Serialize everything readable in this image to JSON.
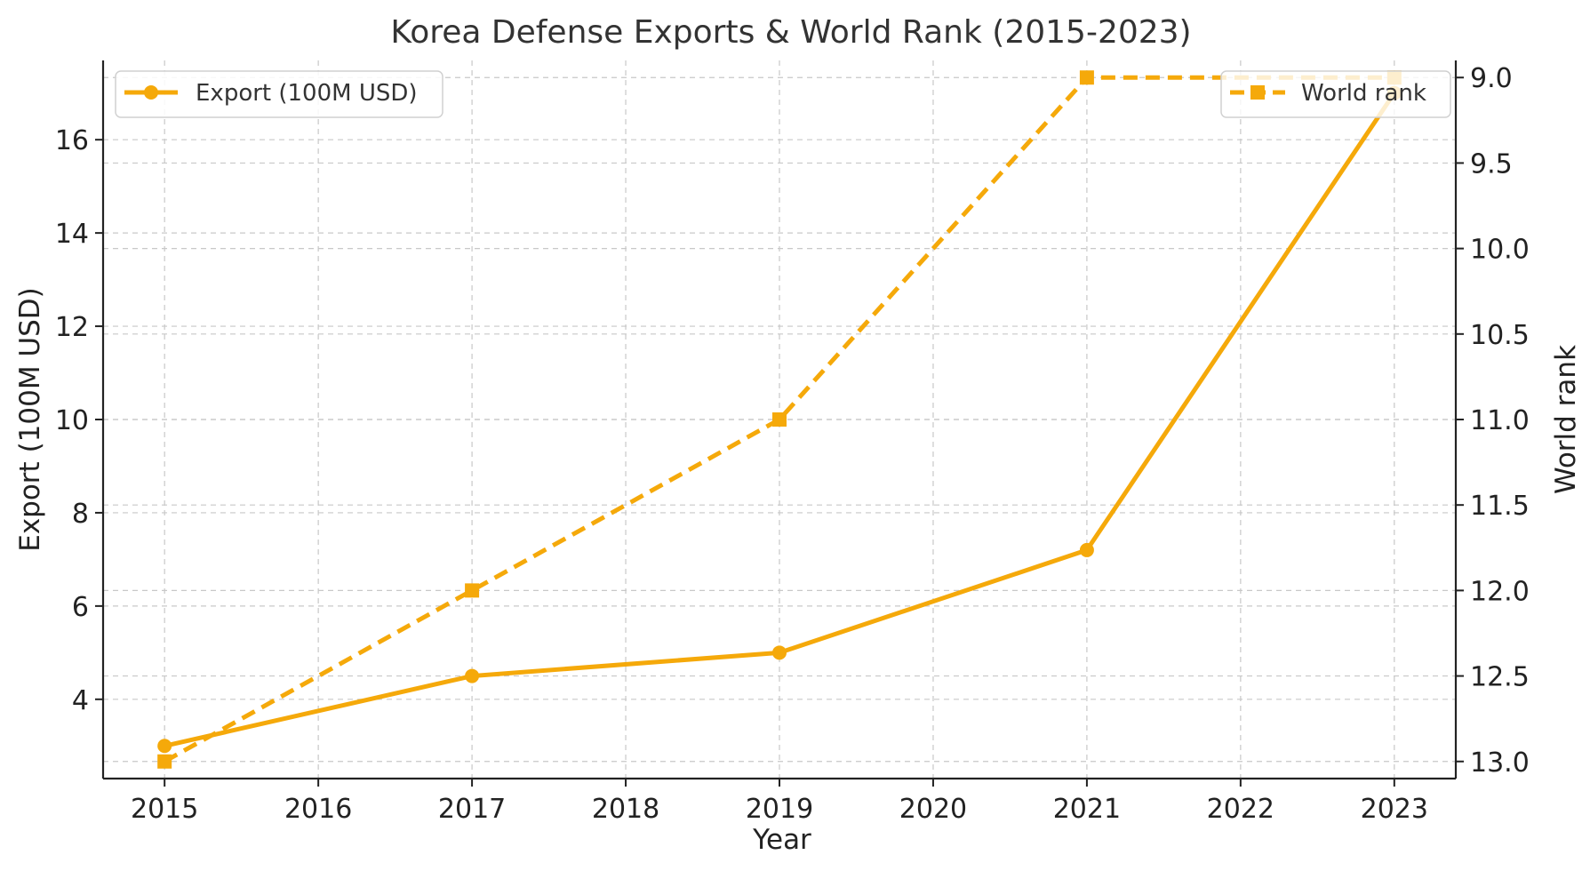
{
  "chart_data": {
    "type": "line",
    "title": "Korea Defense Exports & World Rank (2015-2023)",
    "xlabel": "Year",
    "ylabel_left": "Export (100M USD)",
    "ylabel_right": "World rank",
    "x_ticks": [
      2015,
      2016,
      2017,
      2018,
      2019,
      2020,
      2021,
      2022,
      2023
    ],
    "xlim": [
      2014.6,
      2023.4
    ],
    "left_ylim": [
      2.3,
      17.7
    ],
    "left_ticks": [
      4,
      6,
      8,
      10,
      12,
      14,
      16
    ],
    "right_ylim": [
      13.1,
      8.9
    ],
    "right_ticks": [
      "9.0",
      "9.5",
      "10.0",
      "10.5",
      "11.0",
      "11.5",
      "12.0",
      "12.5",
      "13.0"
    ],
    "grid": true,
    "color": "#f5a90a",
    "series": [
      {
        "name": "Export (100M USD)",
        "axis": "left",
        "style": "solid",
        "marker": "circle",
        "x": [
          2015,
          2017,
          2019,
          2021,
          2023
        ],
        "y": [
          3,
          4.5,
          5,
          7.2,
          17
        ]
      },
      {
        "name": "World rank",
        "axis": "right",
        "style": "dashed",
        "marker": "square",
        "x": [
          2015,
          2017,
          2019,
          2021,
          2023
        ],
        "y": [
          13,
          12,
          11,
          9,
          9
        ]
      }
    ],
    "legend": [
      {
        "label": "Export (100M USD)",
        "placement": "top-left"
      },
      {
        "label": "World rank",
        "placement": "top-right"
      }
    ]
  }
}
